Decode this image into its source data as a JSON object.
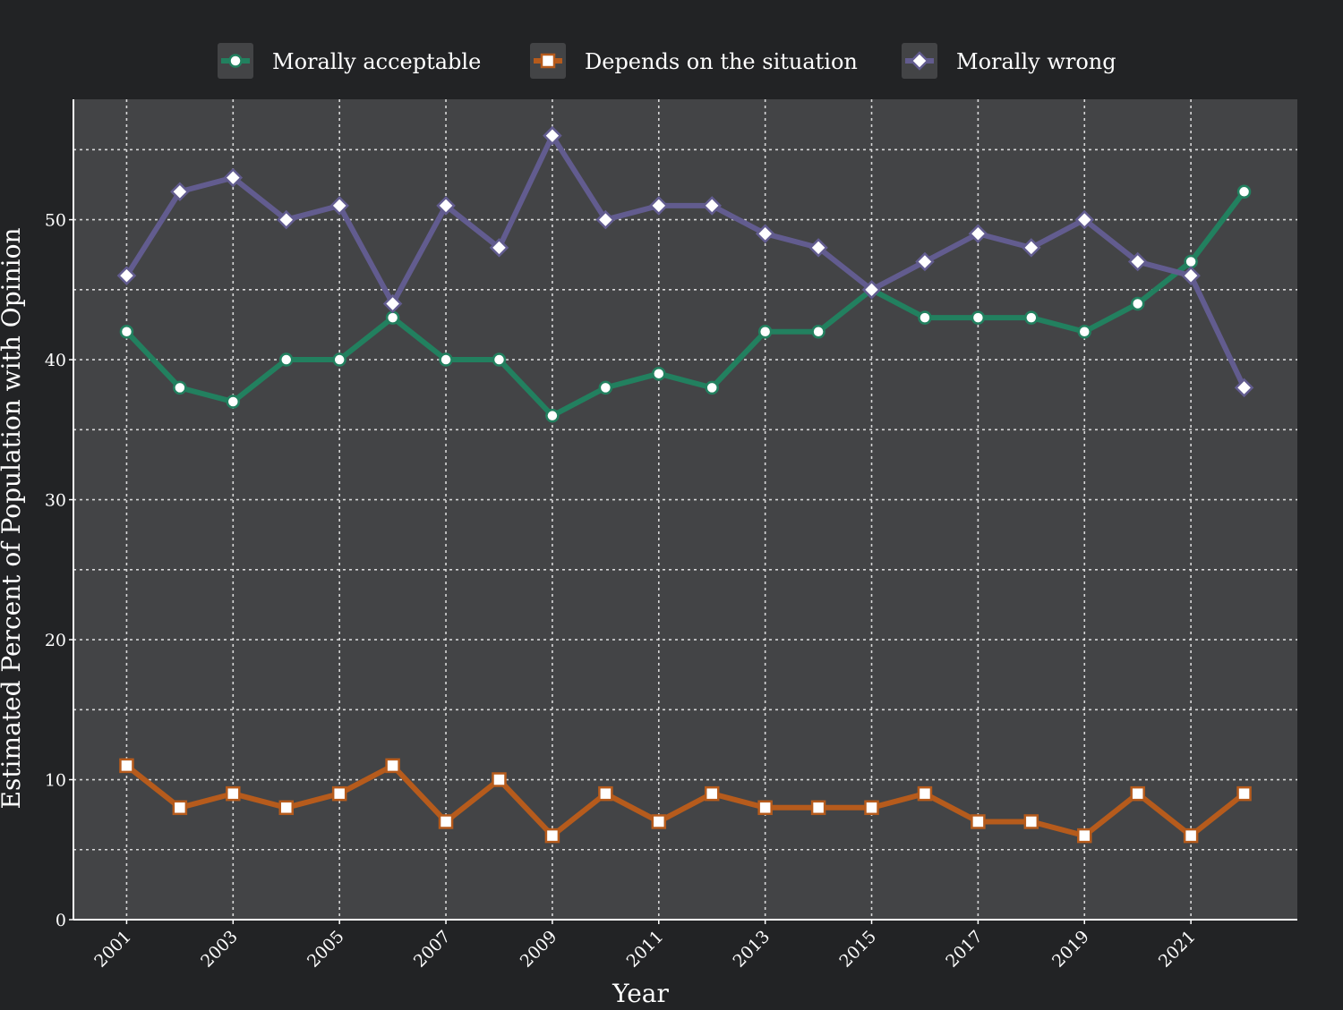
{
  "chart_data": {
    "type": "line",
    "x": [
      2001,
      2002,
      2003,
      2004,
      2005,
      2006,
      2007,
      2008,
      2009,
      2010,
      2011,
      2012,
      2013,
      2014,
      2015,
      2016,
      2017,
      2018,
      2019,
      2020,
      2021,
      2022
    ],
    "x_tick_labels": [
      "2001",
      "2003",
      "2005",
      "2007",
      "2009",
      "2011",
      "2013",
      "2015",
      "2017",
      "2019",
      "2021"
    ],
    "y_tick_labels": [
      "0",
      "10",
      "20",
      "30",
      "40",
      "50"
    ],
    "xlim": [
      2000,
      2023
    ],
    "ylim": [
      0,
      58.6
    ],
    "xlabel": "Year",
    "ylabel": "Estimated Percent of Population with Opinion",
    "grid": true,
    "legend_position": "top",
    "series": [
      {
        "name": "Morally acceptable",
        "color": "#22805f",
        "marker": "circle",
        "values": [
          42,
          38,
          37,
          40,
          40,
          43,
          40,
          40,
          36,
          38,
          39,
          38,
          42,
          42,
          45,
          43,
          43,
          43,
          42,
          44,
          47,
          52
        ]
      },
      {
        "name": "Depends on the situation",
        "color": "#b65b1c",
        "marker": "square",
        "values": [
          11,
          8,
          9,
          8,
          9,
          11,
          7,
          10,
          6,
          9,
          7,
          9,
          8,
          8,
          8,
          9,
          7,
          7,
          6,
          9,
          6,
          9
        ]
      },
      {
        "name": "Morally wrong",
        "color": "#625c8f",
        "marker": "diamond",
        "values": [
          46,
          52,
          53,
          50,
          51,
          44,
          51,
          48,
          56,
          50,
          51,
          51,
          49,
          48,
          45,
          47,
          49,
          48,
          50,
          47,
          46,
          38
        ]
      }
    ]
  },
  "colors": {
    "page_background": "#222325",
    "plot_background": "#434446",
    "axis_and_text": "#ffffff",
    "grid": "#e8e8e8"
  }
}
